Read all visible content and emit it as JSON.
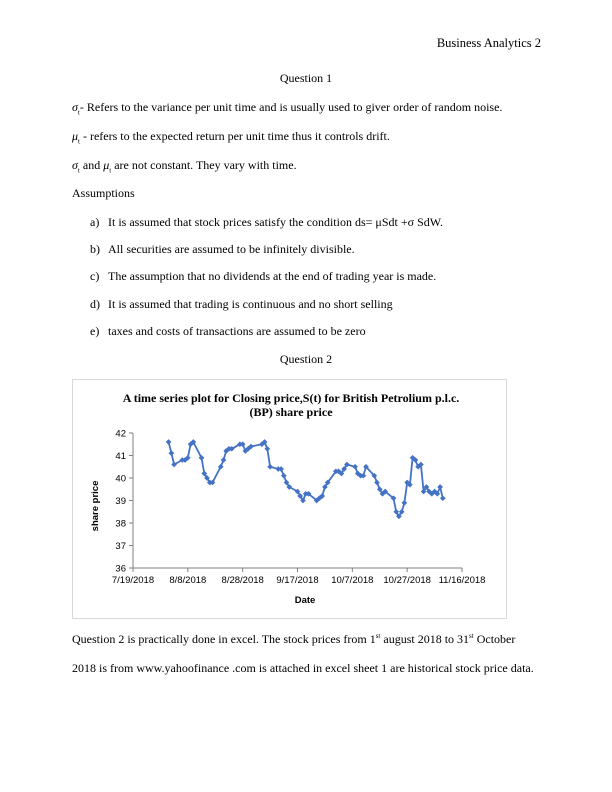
{
  "header": {
    "running_head": "Business Analytics 2"
  },
  "q1": {
    "title": "Question 1",
    "sigma_sym": "σ",
    "sigma_sub": "t",
    "sigma_text": "-  Refers to the variance per unit time and is usually used to giver order of random noise.",
    "mu_sym": "μ",
    "mu_sub": "t",
    "mu_text": " - refers to the expected return per unit time thus it controls drift.",
    "both_sigma": "σ",
    "both_sigma_sub": "t",
    "both_and": " and ",
    "both_mu": "μ",
    "both_mu_sub": "t",
    "both_text": " are not constant. They vary with time.",
    "assumptions_title": "Assumptions",
    "items": [
      {
        "label": "a)",
        "text": "It is assumed that stock prices satisfy the condition ds= μSdt +σ SdW."
      },
      {
        "label": "b)",
        "text": "All securities are assumed to be infinitely divisible."
      },
      {
        "label": "c)",
        "text": "The assumption that no dividends at the end of trading year is made."
      },
      {
        "label": "d)",
        "text": "It is assumed that trading is continuous and no short selling"
      },
      {
        "label": "e)",
        "text": "taxes and costs of transactions are assumed to be zero"
      }
    ]
  },
  "q2": {
    "title": "Question 2",
    "para1_a": "Question 2 is practically done in excel. The stock prices from 1",
    "para1_sup1": "st",
    "para1_b": " august 2018 to 31",
    "para1_sup2": "st",
    "para1_c": " October",
    "para2": "2018 is from www.yahoofinance .com is attached in excel sheet 1 are historical stock price data."
  },
  "chart_data": {
    "type": "line",
    "title_line1": "A time series plot for Closing price,S(t) for British Petrolium p.l.c.",
    "title_line2": "(BP) share price",
    "xlabel": "Date",
    "ylabel": "share price",
    "ylim": [
      36,
      42
    ],
    "yticks": [
      "36",
      "37",
      "38",
      "39",
      "40",
      "41",
      "42"
    ],
    "xticks": [
      "7/19/2018",
      "8/8/2018",
      "8/28/2018",
      "9/17/2018",
      "10/7/2018",
      "10/27/2018",
      "11/16/2018"
    ],
    "series_color": "#4472c4",
    "series": [
      {
        "values": [
          [
            "2018-08-01",
            41.6
          ],
          [
            "2018-08-02",
            41.1
          ],
          [
            "2018-08-03",
            40.6
          ],
          [
            "2018-08-06",
            40.8
          ],
          [
            "2018-08-07",
            40.8
          ],
          [
            "2018-08-08",
            40.9
          ],
          [
            "2018-08-09",
            41.5
          ],
          [
            "2018-08-10",
            41.6
          ],
          [
            "2018-08-13",
            40.9
          ],
          [
            "2018-08-14",
            40.2
          ],
          [
            "2018-08-15",
            40.0
          ],
          [
            "2018-08-16",
            39.8
          ],
          [
            "2018-08-17",
            39.8
          ],
          [
            "2018-08-20",
            40.5
          ],
          [
            "2018-08-21",
            40.8
          ],
          [
            "2018-08-22",
            41.2
          ],
          [
            "2018-08-23",
            41.3
          ],
          [
            "2018-08-24",
            41.3
          ],
          [
            "2018-08-27",
            41.5
          ],
          [
            "2018-08-28",
            41.5
          ],
          [
            "2018-08-29",
            41.2
          ],
          [
            "2018-08-30",
            41.3
          ],
          [
            "2018-08-31",
            41.4
          ],
          [
            "2018-09-04",
            41.5
          ],
          [
            "2018-09-05",
            41.6
          ],
          [
            "2018-09-06",
            41.3
          ],
          [
            "2018-09-07",
            40.5
          ],
          [
            "2018-09-10",
            40.4
          ],
          [
            "2018-09-11",
            40.4
          ],
          [
            "2018-09-12",
            40.1
          ],
          [
            "2018-09-13",
            39.8
          ],
          [
            "2018-09-14",
            39.6
          ],
          [
            "2018-09-17",
            39.4
          ],
          [
            "2018-09-18",
            39.2
          ],
          [
            "2018-09-19",
            39.0
          ],
          [
            "2018-09-20",
            39.3
          ],
          [
            "2018-09-21",
            39.3
          ],
          [
            "2018-09-24",
            39.0
          ],
          [
            "2018-09-25",
            39.1
          ],
          [
            "2018-09-26",
            39.2
          ],
          [
            "2018-09-27",
            39.6
          ],
          [
            "2018-09-28",
            39.8
          ],
          [
            "2018-10-01",
            40.3
          ],
          [
            "2018-10-02",
            40.3
          ],
          [
            "2018-10-03",
            40.2
          ],
          [
            "2018-10-04",
            40.4
          ],
          [
            "2018-10-05",
            40.6
          ],
          [
            "2018-10-08",
            40.5
          ],
          [
            "2018-10-09",
            40.2
          ],
          [
            "2018-10-10",
            40.1
          ],
          [
            "2018-10-11",
            40.1
          ],
          [
            "2018-10-12",
            40.5
          ],
          [
            "2018-10-15",
            40.1
          ],
          [
            "2018-10-16",
            39.8
          ],
          [
            "2018-10-17",
            39.5
          ],
          [
            "2018-10-18",
            39.3
          ],
          [
            "2018-10-19",
            39.4
          ],
          [
            "2018-10-22",
            39.1
          ],
          [
            "2018-10-23",
            38.5
          ],
          [
            "2018-10-24",
            38.3
          ],
          [
            "2018-10-25",
            38.5
          ],
          [
            "2018-10-26",
            38.9
          ],
          [
            "2018-10-27",
            39.8
          ],
          [
            "2018-10-28",
            39.7
          ],
          [
            "2018-10-29",
            40.9
          ],
          [
            "2018-10-30",
            40.8
          ],
          [
            "2018-10-31",
            40.5
          ],
          [
            "2018-11-01",
            40.6
          ],
          [
            "2018-11-02",
            39.4
          ],
          [
            "2018-11-03",
            39.6
          ],
          [
            "2018-11-04",
            39.4
          ],
          [
            "2018-11-05",
            39.3
          ],
          [
            "2018-11-06",
            39.4
          ],
          [
            "2018-11-07",
            39.3
          ],
          [
            "2018-11-08",
            39.6
          ],
          [
            "2018-11-09",
            39.1
          ]
        ]
      }
    ]
  }
}
